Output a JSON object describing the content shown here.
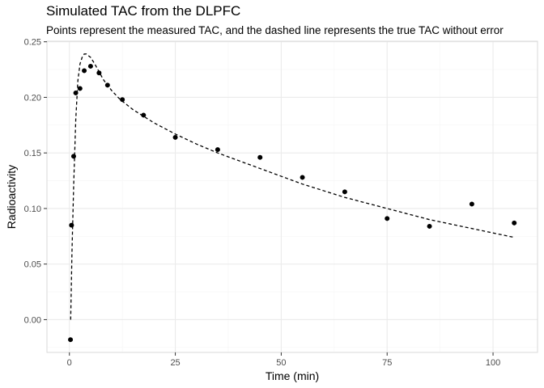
{
  "chart_data": {
    "type": "scatter",
    "title": "Simulated TAC from the DLPFC",
    "subtitle": "Points represent the measured TAC, and the dashed line represents the true TAC without error",
    "xlabel": "Time (min)",
    "ylabel": "Radioactivity",
    "xlim": [
      -5.3,
      110.5
    ],
    "ylim": [
      -0.0295,
      0.2505
    ],
    "x_ticks": [
      0,
      25,
      50,
      75,
      100
    ],
    "y_ticks": [
      0.0,
      0.05,
      0.1,
      0.15,
      0.2,
      0.25
    ],
    "x_tick_labels": [
      "0",
      "25",
      "50",
      "75",
      "100"
    ],
    "y_tick_labels": [
      "0.00",
      "0.05",
      "0.10",
      "0.15",
      "0.20",
      "0.25"
    ],
    "grid": true,
    "series": [
      {
        "type": "scatter",
        "points": [
          [
            0.25,
            -0.018
          ],
          [
            0.5,
            0.085
          ],
          [
            1.0,
            0.147
          ],
          [
            1.5,
            0.204
          ],
          [
            2.5,
            0.208
          ],
          [
            3.5,
            0.224
          ],
          [
            5.0,
            0.228
          ],
          [
            7.0,
            0.222
          ],
          [
            9.0,
            0.211
          ],
          [
            12.5,
            0.198
          ],
          [
            17.5,
            0.184
          ],
          [
            25.0,
            0.164
          ],
          [
            35.0,
            0.153
          ],
          [
            45.0,
            0.146
          ],
          [
            55.0,
            0.128
          ],
          [
            65.0,
            0.115
          ],
          [
            75.0,
            0.091
          ],
          [
            85.0,
            0.084
          ],
          [
            95.0,
            0.104
          ],
          [
            105.0,
            0.087
          ]
        ]
      },
      {
        "type": "line",
        "dash": true,
        "points": [
          [
            0.3,
            0.0
          ],
          [
            0.6,
            0.06
          ],
          [
            1.0,
            0.12
          ],
          [
            1.5,
            0.18
          ],
          [
            2.0,
            0.215
          ],
          [
            2.5,
            0.23
          ],
          [
            3.0,
            0.236
          ],
          [
            3.5,
            0.239
          ],
          [
            4.0,
            0.239
          ],
          [
            5.0,
            0.236
          ],
          [
            6.0,
            0.23
          ],
          [
            7.0,
            0.223
          ],
          [
            8.0,
            0.216
          ],
          [
            10.0,
            0.206
          ],
          [
            12.0,
            0.198
          ],
          [
            15.0,
            0.189
          ],
          [
            20.0,
            0.177
          ],
          [
            25.0,
            0.167
          ],
          [
            30.0,
            0.158
          ],
          [
            35.0,
            0.15
          ],
          [
            40.0,
            0.143
          ],
          [
            45.0,
            0.136
          ],
          [
            50.0,
            0.129
          ],
          [
            55.0,
            0.122
          ],
          [
            60.0,
            0.116
          ],
          [
            65.0,
            0.11
          ],
          [
            70.0,
            0.105
          ],
          [
            75.0,
            0.1
          ],
          [
            80.0,
            0.095
          ],
          [
            85.0,
            0.09
          ],
          [
            90.0,
            0.086
          ],
          [
            95.0,
            0.082
          ],
          [
            100.0,
            0.078
          ],
          [
            105.0,
            0.074
          ]
        ]
      }
    ],
    "colors": {
      "points": "#000000",
      "line": "#000000",
      "grid_major": "#ebebeb",
      "grid_minor": "#f5f5f5",
      "panel_border": "#d9d9d9"
    }
  }
}
